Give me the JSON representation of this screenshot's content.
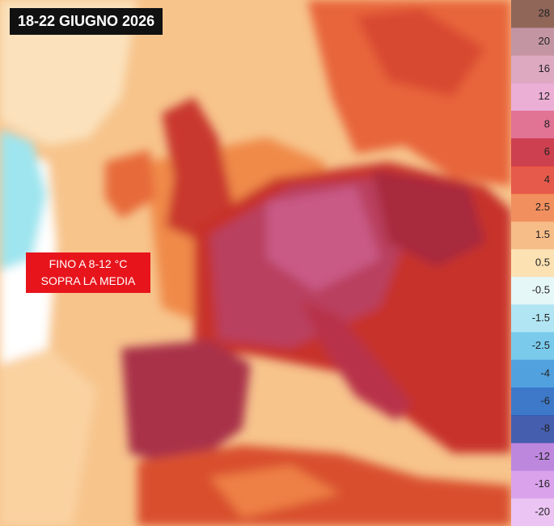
{
  "header": {
    "title": "18-22 GIUGNO 2026"
  },
  "annotation": {
    "lines": [
      "FINO A 8-12 °C",
      "SOPRA LA MEDIA"
    ]
  },
  "legend": {
    "items": [
      {
        "value": 28,
        "color": "#7d4b3c"
      },
      {
        "value": 20,
        "color": "#b98293"
      },
      {
        "value": 16,
        "color": "#d69ab5"
      },
      {
        "value": 12,
        "color": "#e7a1cf"
      },
      {
        "value": 8,
        "color": "#dc5a82"
      },
      {
        "value": 6,
        "color": "#c41f30"
      },
      {
        "value": 4,
        "color": "#e23d2b"
      },
      {
        "value": 2.5,
        "color": "#ef7b42"
      },
      {
        "value": 1.5,
        "color": "#f5b274"
      },
      {
        "value": 0.5,
        "color": "#fbdca6"
      },
      {
        "value": -0.5,
        "color": "#e2f6f6"
      },
      {
        "value": -1.5,
        "color": "#a3e1f1"
      },
      {
        "value": -2.5,
        "color": "#62c1e8"
      },
      {
        "value": -4,
        "color": "#3290d8"
      },
      {
        "value": -6,
        "color": "#1c62c0"
      },
      {
        "value": -8,
        "color": "#2442a0"
      },
      {
        "value": -12,
        "color": "#b172d8"
      },
      {
        "value": -16,
        "color": "#d292e8"
      },
      {
        "value": -20,
        "color": "#e9baf1"
      }
    ]
  }
}
